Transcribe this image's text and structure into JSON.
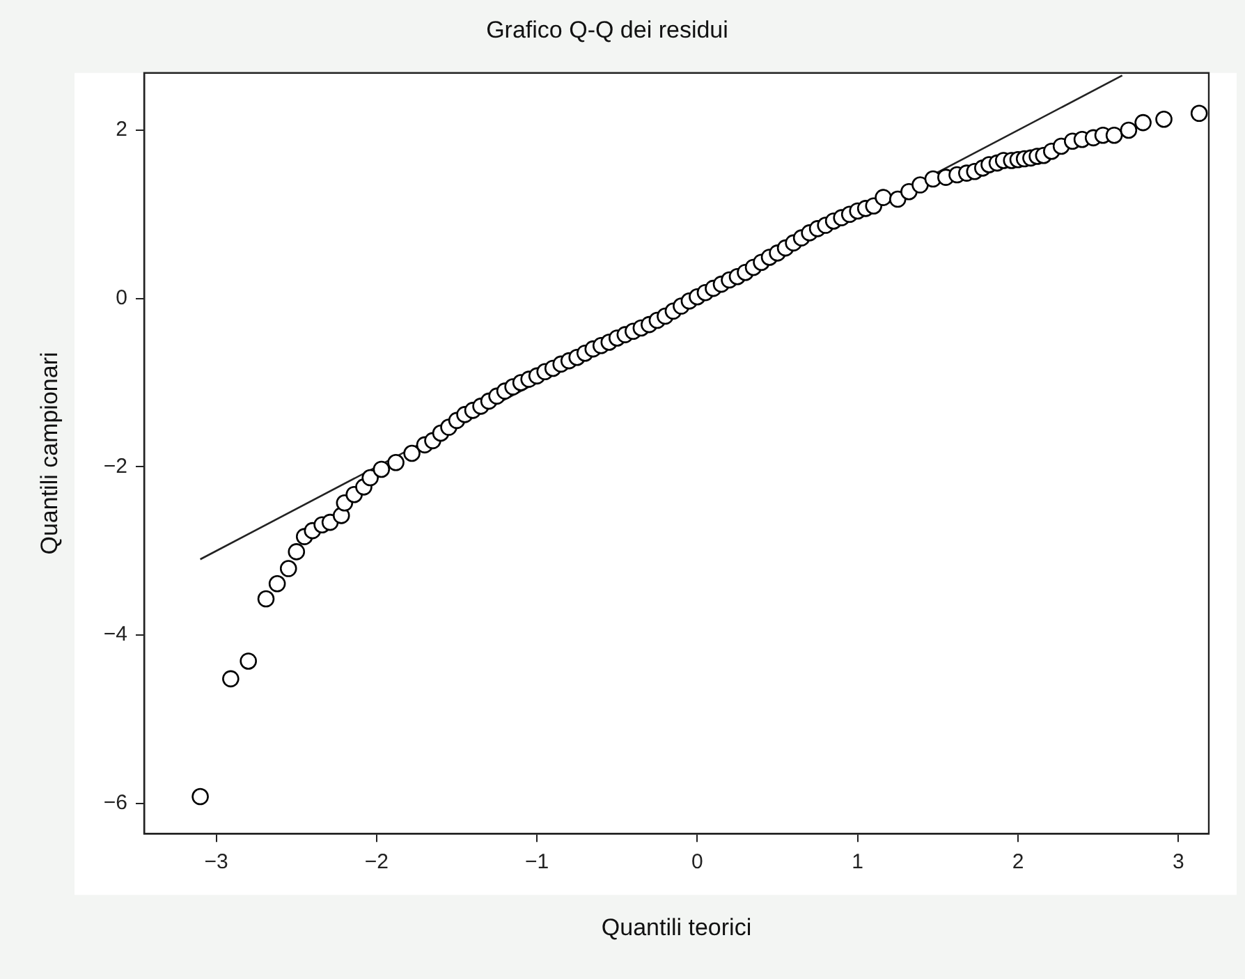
{
  "chart_data": {
    "type": "scatter",
    "title": "Grafico Q-Q dei residui",
    "xlabel": "Quantili teorici",
    "ylabel": "Quantili campionari",
    "xlim": [
      -3.45,
      3.19
    ],
    "ylim": [
      -6.36,
      2.68
    ],
    "xticks": [
      {
        "value": -3,
        "label": "−3"
      },
      {
        "value": -2,
        "label": "−2"
      },
      {
        "value": -1,
        "label": "−1"
      },
      0,
      1,
      2,
      3
    ],
    "yticks": [
      {
        "value": -6,
        "label": "−6"
      },
      {
        "value": -4,
        "label": "−4"
      },
      {
        "value": -2,
        "label": "−2"
      },
      0,
      2
    ],
    "grid": false,
    "marker": "circle",
    "series": [
      {
        "type": "scatter",
        "color": "#000000",
        "x": [
          -3.1,
          -2.91,
          -2.8,
          -2.69,
          -2.62,
          -2.55,
          -2.5,
          -2.45,
          -2.4,
          -2.34,
          -2.29,
          -2.22,
          -2.2,
          -2.14,
          -2.08,
          -2.04,
          -1.97,
          -1.88,
          -1.78,
          -1.7,
          -1.65,
          -1.6,
          -1.55,
          -1.5,
          -1.45,
          -1.4,
          -1.35,
          -1.3,
          -1.25,
          -1.2,
          -1.15,
          -1.1,
          -1.05,
          -1.0,
          -0.95,
          -0.9,
          -0.85,
          -0.8,
          -0.75,
          -0.7,
          -0.65,
          -0.6,
          -0.55,
          -0.5,
          -0.45,
          -0.4,
          -0.35,
          -0.3,
          -0.25,
          -0.2,
          -0.15,
          -0.1,
          -0.05,
          0.0,
          0.05,
          0.1,
          0.15,
          0.2,
          0.25,
          0.3,
          0.35,
          0.4,
          0.45,
          0.5,
          0.55,
          0.6,
          0.65,
          0.7,
          0.75,
          0.8,
          0.85,
          0.9,
          0.95,
          1.0,
          1.05,
          1.1,
          1.16,
          1.25,
          1.32,
          1.39,
          1.47,
          1.55,
          1.62,
          1.68,
          1.73,
          1.78,
          1.82,
          1.87,
          1.91,
          1.96,
          2.0,
          2.04,
          2.08,
          2.12,
          2.16,
          2.21,
          2.27,
          2.34,
          2.4,
          2.47,
          2.53,
          2.6,
          2.69,
          2.78,
          2.91,
          3.13
        ],
        "values": [
          -5.92,
          -4.52,
          -4.31,
          -3.57,
          -3.39,
          -3.21,
          -3.01,
          -2.83,
          -2.76,
          -2.69,
          -2.66,
          -2.58,
          -2.43,
          -2.33,
          -2.24,
          -2.13,
          -2.03,
          -1.95,
          -1.84,
          -1.74,
          -1.69,
          -1.6,
          -1.53,
          -1.45,
          -1.38,
          -1.33,
          -1.28,
          -1.22,
          -1.16,
          -1.1,
          -1.05,
          -1.0,
          -0.96,
          -0.92,
          -0.87,
          -0.83,
          -0.78,
          -0.74,
          -0.7,
          -0.65,
          -0.6,
          -0.56,
          -0.52,
          -0.47,
          -0.43,
          -0.39,
          -0.35,
          -0.31,
          -0.26,
          -0.21,
          -0.15,
          -0.09,
          -0.03,
          0.02,
          0.07,
          0.12,
          0.17,
          0.22,
          0.26,
          0.31,
          0.37,
          0.43,
          0.49,
          0.54,
          0.6,
          0.66,
          0.72,
          0.78,
          0.83,
          0.87,
          0.92,
          0.96,
          1.0,
          1.04,
          1.07,
          1.1,
          1.2,
          1.18,
          1.27,
          1.35,
          1.42,
          1.44,
          1.47,
          1.49,
          1.51,
          1.55,
          1.59,
          1.61,
          1.64,
          1.64,
          1.65,
          1.66,
          1.67,
          1.69,
          1.7,
          1.75,
          1.81,
          1.87,
          1.89,
          1.91,
          1.94,
          1.94,
          2.0,
          2.09,
          2.13,
          2.2
        ]
      },
      {
        "type": "line",
        "color": "#222222",
        "marker": "none",
        "line_style": "solid",
        "x": [
          -3.1,
          2.65
        ],
        "values": [
          -3.1,
          2.65
        ]
      }
    ]
  }
}
